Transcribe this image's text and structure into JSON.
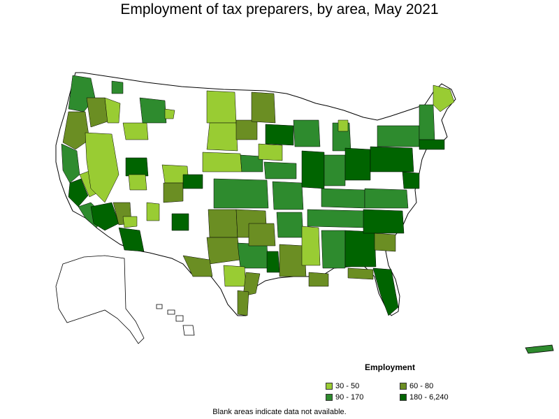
{
  "title": "Employment of tax preparers, by area, May 2021",
  "legend": {
    "title": "Employment",
    "items": [
      {
        "label": "30 - 50",
        "color": "#99cc33"
      },
      {
        "label": "60 - 80",
        "color": "#6b8e23"
      },
      {
        "label": "90 - 170",
        "color": "#2e8b2e"
      },
      {
        "label": "180 - 6,240",
        "color": "#006400"
      }
    ]
  },
  "footnote": "Blank areas indicate data not available."
}
